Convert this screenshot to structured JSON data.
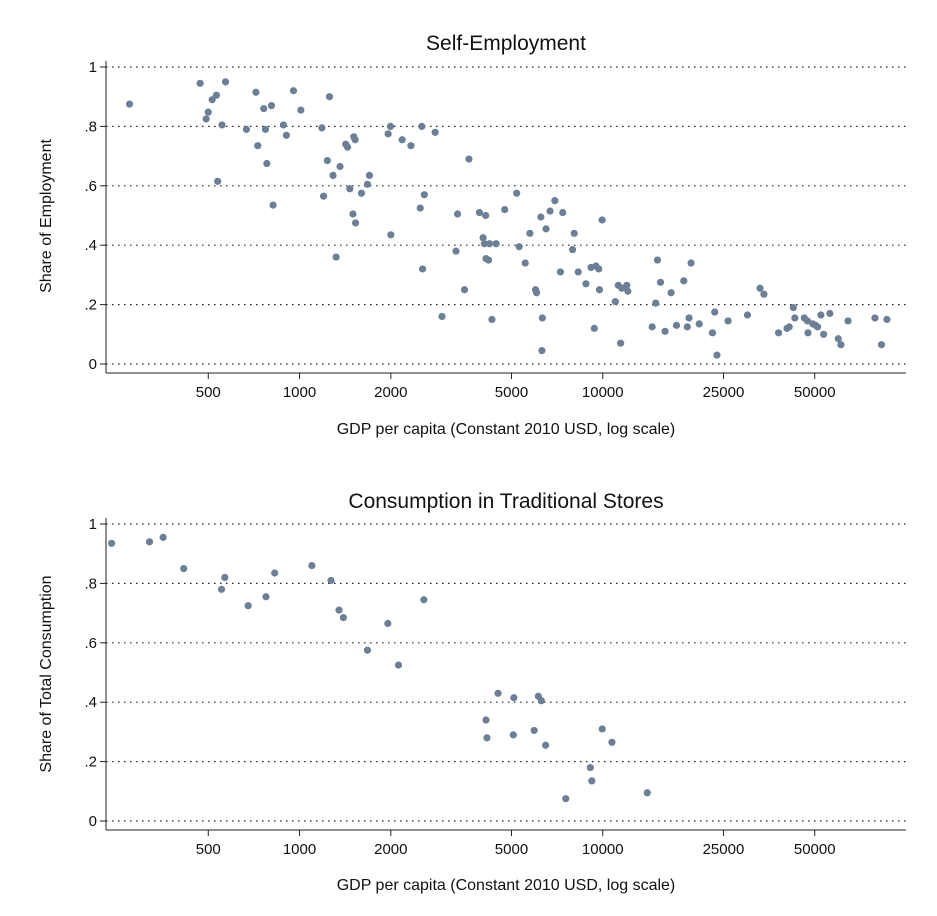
{
  "chart_data": [
    {
      "type": "scatter",
      "title": "Self-Employment",
      "xlabel": "GDP per capita (Constant 2010 USD, log scale)",
      "ylabel": "Share of Employment",
      "xscale": "log",
      "xlim": [
        230,
        100000
      ],
      "ylim": [
        0,
        1
      ],
      "xticks": [
        500,
        1000,
        2000,
        5000,
        10000,
        25000,
        50000
      ],
      "xtick_labels": [
        "500",
        "1000",
        "2000",
        "5000",
        "10000",
        "25000",
        "50000"
      ],
      "yticks": [
        0,
        0.2,
        0.4,
        0.6,
        0.8,
        1
      ],
      "ytick_labels": [
        "0",
        ".2",
        ".4",
        ".6",
        ".8",
        "1"
      ],
      "grid": "horizontal dotted",
      "marker_color": "#6d7f96",
      "points": [
        [
          275,
          0.875
        ],
        [
          470,
          0.945
        ],
        [
          492,
          0.825
        ],
        [
          500,
          0.848
        ],
        [
          515,
          0.89
        ],
        [
          532,
          0.905
        ],
        [
          537,
          0.615
        ],
        [
          555,
          0.805
        ],
        [
          570,
          0.95
        ],
        [
          668,
          0.79
        ],
        [
          718,
          0.915
        ],
        [
          728,
          0.735
        ],
        [
          762,
          0.86
        ],
        [
          772,
          0.79
        ],
        [
          780,
          0.675
        ],
        [
          808,
          0.87
        ],
        [
          818,
          0.535
        ],
        [
          885,
          0.805
        ],
        [
          905,
          0.77
        ],
        [
          955,
          0.92
        ],
        [
          1010,
          0.855
        ],
        [
          1185,
          0.795
        ],
        [
          1200,
          0.565
        ],
        [
          1235,
          0.685
        ],
        [
          1255,
          0.9
        ],
        [
          1290,
          0.635
        ],
        [
          1320,
          0.36
        ],
        [
          1360,
          0.665
        ],
        [
          1420,
          0.74
        ],
        [
          1440,
          0.73
        ],
        [
          1465,
          0.59
        ],
        [
          1500,
          0.505
        ],
        [
          1510,
          0.765
        ],
        [
          1525,
          0.755
        ],
        [
          1530,
          0.475
        ],
        [
          1600,
          0.575
        ],
        [
          1675,
          0.605
        ],
        [
          1700,
          0.635
        ],
        [
          1960,
          0.775
        ],
        [
          1995,
          0.8
        ],
        [
          2000,
          0.435
        ],
        [
          2180,
          0.755
        ],
        [
          2330,
          0.735
        ],
        [
          2500,
          0.525
        ],
        [
          2530,
          0.8
        ],
        [
          2545,
          0.32
        ],
        [
          2580,
          0.57
        ],
        [
          2800,
          0.78
        ],
        [
          2950,
          0.16
        ],
        [
          3280,
          0.38
        ],
        [
          3320,
          0.505
        ],
        [
          3500,
          0.25
        ],
        [
          3620,
          0.69
        ],
        [
          3920,
          0.51
        ],
        [
          4030,
          0.425
        ],
        [
          4070,
          0.405
        ],
        [
          4110,
          0.5
        ],
        [
          4120,
          0.355
        ],
        [
          4200,
          0.35
        ],
        [
          4230,
          0.405
        ],
        [
          4310,
          0.15
        ],
        [
          4450,
          0.405
        ],
        [
          4750,
          0.52
        ],
        [
          5200,
          0.575
        ],
        [
          5300,
          0.395
        ],
        [
          5550,
          0.34
        ],
        [
          5750,
          0.44
        ],
        [
          6000,
          0.25
        ],
        [
          6050,
          0.24
        ],
        [
          6250,
          0.495
        ],
        [
          6300,
          0.045
        ],
        [
          6320,
          0.155
        ],
        [
          6500,
          0.455
        ],
        [
          6700,
          0.515
        ],
        [
          6950,
          0.55
        ],
        [
          7250,
          0.31
        ],
        [
          7380,
          0.51
        ],
        [
          7950,
          0.385
        ],
        [
          8050,
          0.44
        ],
        [
          8300,
          0.31
        ],
        [
          8800,
          0.27
        ],
        [
          9150,
          0.325
        ],
        [
          9380,
          0.12
        ],
        [
          9500,
          0.33
        ],
        [
          9700,
          0.32
        ],
        [
          9750,
          0.25
        ],
        [
          9950,
          0.485
        ],
        [
          11000,
          0.21
        ],
        [
          11250,
          0.265
        ],
        [
          11450,
          0.07
        ],
        [
          11550,
          0.255
        ],
        [
          12000,
          0.265
        ],
        [
          12100,
          0.245
        ],
        [
          14550,
          0.125
        ],
        [
          14950,
          0.205
        ],
        [
          15150,
          0.35
        ],
        [
          15500,
          0.275
        ],
        [
          16050,
          0.11
        ],
        [
          16800,
          0.24
        ],
        [
          17500,
          0.13
        ],
        [
          18500,
          0.28
        ],
        [
          19000,
          0.125
        ],
        [
          19250,
          0.155
        ],
        [
          19550,
          0.34
        ],
        [
          20800,
          0.135
        ],
        [
          23000,
          0.105
        ],
        [
          23400,
          0.175
        ],
        [
          23800,
          0.03
        ],
        [
          25900,
          0.145
        ],
        [
          30000,
          0.165
        ],
        [
          33000,
          0.255
        ],
        [
          34000,
          0.235
        ],
        [
          38000,
          0.105
        ],
        [
          40500,
          0.12
        ],
        [
          41200,
          0.125
        ],
        [
          42500,
          0.19
        ],
        [
          43000,
          0.155
        ],
        [
          46200,
          0.155
        ],
        [
          47300,
          0.145
        ],
        [
          47500,
          0.105
        ],
        [
          49300,
          0.135
        ],
        [
          50300,
          0.13
        ],
        [
          51100,
          0.125
        ],
        [
          52400,
          0.165
        ],
        [
          53500,
          0.1
        ],
        [
          56100,
          0.17
        ],
        [
          59800,
          0.085
        ],
        [
          61000,
          0.065
        ],
        [
          64400,
          0.145
        ],
        [
          79000,
          0.155
        ],
        [
          83000,
          0.065
        ],
        [
          86500,
          0.15
        ]
      ]
    },
    {
      "type": "scatter",
      "title": "Consumption in Traditional Stores",
      "xlabel": "GDP per capita (Constant 2010 USD, log scale)",
      "ylabel": "Share of Total Consumption",
      "xscale": "log",
      "xlim": [
        230,
        100000
      ],
      "ylim": [
        0,
        1
      ],
      "xticks": [
        500,
        1000,
        2000,
        5000,
        10000,
        25000,
        50000
      ],
      "xtick_labels": [
        "500",
        "1000",
        "2000",
        "5000",
        "10000",
        "25000",
        "50000"
      ],
      "yticks": [
        0,
        0.2,
        0.4,
        0.6,
        0.8,
        1
      ],
      "ytick_labels": [
        "0",
        ".2",
        ".4",
        ".6",
        ".8",
        "1"
      ],
      "grid": "horizontal dotted",
      "marker_color": "#6d7f96",
      "points": [
        [
          240,
          0.935
        ],
        [
          320,
          0.94
        ],
        [
          355,
          0.955
        ],
        [
          415,
          0.85
        ],
        [
          553,
          0.78
        ],
        [
          567,
          0.82
        ],
        [
          677,
          0.725
        ],
        [
          775,
          0.755
        ],
        [
          828,
          0.835
        ],
        [
          1098,
          0.86
        ],
        [
          1270,
          0.81
        ],
        [
          1350,
          0.71
        ],
        [
          1395,
          0.685
        ],
        [
          1675,
          0.575
        ],
        [
          1955,
          0.665
        ],
        [
          2120,
          0.525
        ],
        [
          2570,
          0.745
        ],
        [
          4120,
          0.34
        ],
        [
          4150,
          0.28
        ],
        [
          4515,
          0.43
        ],
        [
          5070,
          0.29
        ],
        [
          5090,
          0.415
        ],
        [
          5940,
          0.305
        ],
        [
          6130,
          0.42
        ],
        [
          6270,
          0.405
        ],
        [
          6480,
          0.255
        ],
        [
          7550,
          0.075
        ],
        [
          9100,
          0.18
        ],
        [
          9200,
          0.135
        ],
        [
          9960,
          0.31
        ],
        [
          10720,
          0.265
        ],
        [
          14020,
          0.095
        ]
      ]
    }
  ]
}
